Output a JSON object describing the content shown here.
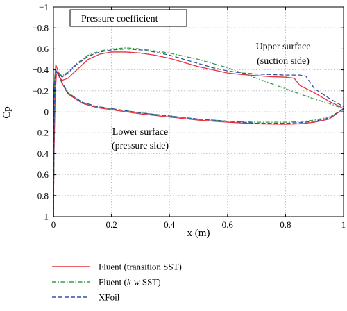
{
  "chart_data": {
    "type": "line",
    "title": "Pressure coefficient",
    "xlabel": "x (m)",
    "ylabel": "Cp",
    "xlim": [
      0,
      1
    ],
    "ylim": [
      -1,
      1
    ],
    "y_inverted": true,
    "grid": true,
    "legend_position": "bottom-left",
    "xticks": [
      "0",
      "0.2",
      "0.4",
      "0.6",
      "0.8",
      "1"
    ],
    "xtick_values": [
      0,
      0.2,
      0.4,
      0.6,
      0.8,
      1
    ],
    "yticks": [
      "−1",
      "−0.8",
      "−0.6",
      "−0.4",
      "−0.2",
      "0",
      "0.2",
      "0.4",
      "0.6",
      "0.8",
      "1"
    ],
    "ytick_values": [
      -1,
      -0.8,
      -0.6,
      -0.4,
      -0.2,
      0,
      0.2,
      0.4,
      0.6,
      0.8,
      1
    ],
    "annotations": [
      {
        "lines": [
          "Upper surface",
          "(suction side)"
        ],
        "x": 0.88,
        "y": -0.52
      },
      {
        "lines": [
          "Lower surface",
          "(pressure side)"
        ],
        "x": 0.33,
        "y": 0.25
      }
    ],
    "series": [
      {
        "name": "Fluent (transition SST)",
        "color": "#e8303a",
        "dash": "solid",
        "upper": {
          "x": [
            0,
            0.002,
            0.006,
            0.01,
            0.015,
            0.02,
            0.03,
            0.05,
            0.08,
            0.12,
            0.16,
            0.2,
            0.25,
            0.3,
            0.35,
            0.4,
            0.45,
            0.5,
            0.55,
            0.6,
            0.65,
            0.7,
            0.75,
            0.8,
            0.83,
            0.85,
            0.9,
            0.95,
            0.98,
            1
          ],
          "y": [
            1.0,
            0.4,
            -0.15,
            -0.35,
            -0.38,
            -0.33,
            -0.3,
            -0.32,
            -0.4,
            -0.5,
            -0.55,
            -0.57,
            -0.57,
            -0.56,
            -0.54,
            -0.51,
            -0.47,
            -0.43,
            -0.4,
            -0.37,
            -0.355,
            -0.345,
            -0.335,
            -0.33,
            -0.32,
            -0.25,
            -0.18,
            -0.1,
            -0.06,
            -0.03
          ]
        },
        "lower": {
          "x": [
            0,
            0.002,
            0.004,
            0.008,
            0.012,
            0.02,
            0.03,
            0.05,
            0.1,
            0.15,
            0.2,
            0.3,
            0.4,
            0.5,
            0.6,
            0.7,
            0.8,
            0.85,
            0.9,
            0.95,
            1
          ],
          "y": [
            1.0,
            -0.1,
            -0.3,
            -0.45,
            -0.42,
            -0.35,
            -0.27,
            -0.17,
            -0.08,
            -0.04,
            -0.02,
            0.02,
            0.05,
            0.08,
            0.1,
            0.115,
            0.12,
            0.115,
            0.1,
            0.07,
            -0.03
          ]
        }
      },
      {
        "name": "Fluent (k-w SST)",
        "color": "#3a9a4a",
        "dash": "dashdot",
        "upper": {
          "x": [
            0,
            0.003,
            0.006,
            0.01,
            0.02,
            0.03,
            0.05,
            0.08,
            0.12,
            0.16,
            0.2,
            0.25,
            0.3,
            0.35,
            0.4,
            0.45,
            0.5,
            0.55,
            0.6,
            0.65,
            0.7,
            0.75,
            0.8,
            0.85,
            0.9,
            0.95,
            0.98,
            1
          ],
          "y": [
            1.0,
            -0.1,
            -0.3,
            -0.38,
            -0.37,
            -0.34,
            -0.38,
            -0.46,
            -0.54,
            -0.58,
            -0.6,
            -0.61,
            -0.6,
            -0.58,
            -0.56,
            -0.53,
            -0.5,
            -0.46,
            -0.42,
            -0.37,
            -0.32,
            -0.27,
            -0.22,
            -0.17,
            -0.12,
            -0.08,
            -0.05,
            -0.03
          ]
        },
        "lower": {
          "x": [
            0,
            0.003,
            0.006,
            0.01,
            0.02,
            0.03,
            0.05,
            0.1,
            0.15,
            0.2,
            0.3,
            0.4,
            0.5,
            0.6,
            0.7,
            0.8,
            0.85,
            0.9,
            0.95,
            1
          ],
          "y": [
            1.0,
            -0.25,
            -0.38,
            -0.39,
            -0.33,
            -0.27,
            -0.18,
            -0.09,
            -0.05,
            -0.03,
            0.01,
            0.04,
            0.07,
            0.09,
            0.1,
            0.1,
            0.095,
            0.08,
            0.05,
            -0.02
          ]
        }
      },
      {
        "name": "XFoil",
        "color": "#3050a8",
        "dash": "dashed",
        "upper": {
          "x": [
            0,
            0.003,
            0.006,
            0.01,
            0.02,
            0.03,
            0.05,
            0.08,
            0.12,
            0.16,
            0.2,
            0.25,
            0.3,
            0.35,
            0.4,
            0.45,
            0.5,
            0.55,
            0.6,
            0.65,
            0.7,
            0.75,
            0.8,
            0.85,
            0.87,
            0.9,
            0.95,
            0.98,
            1
          ],
          "y": [
            1.0,
            -0.05,
            -0.3,
            -0.38,
            -0.36,
            -0.33,
            -0.37,
            -0.45,
            -0.53,
            -0.57,
            -0.59,
            -0.6,
            -0.59,
            -0.57,
            -0.54,
            -0.5,
            -0.46,
            -0.42,
            -0.39,
            -0.37,
            -0.36,
            -0.355,
            -0.35,
            -0.35,
            -0.34,
            -0.22,
            -0.13,
            -0.08,
            -0.05
          ]
        },
        "lower": {
          "x": [
            0,
            0.003,
            0.006,
            0.01,
            0.02,
            0.03,
            0.05,
            0.1,
            0.15,
            0.2,
            0.3,
            0.4,
            0.5,
            0.6,
            0.7,
            0.8,
            0.85,
            0.9,
            0.95,
            1
          ],
          "y": [
            1.0,
            -0.2,
            -0.36,
            -0.39,
            -0.34,
            -0.28,
            -0.18,
            -0.09,
            -0.05,
            -0.03,
            0.01,
            0.04,
            0.07,
            0.09,
            0.11,
            0.11,
            0.105,
            0.09,
            0.06,
            -0.03
          ]
        }
      }
    ]
  }
}
